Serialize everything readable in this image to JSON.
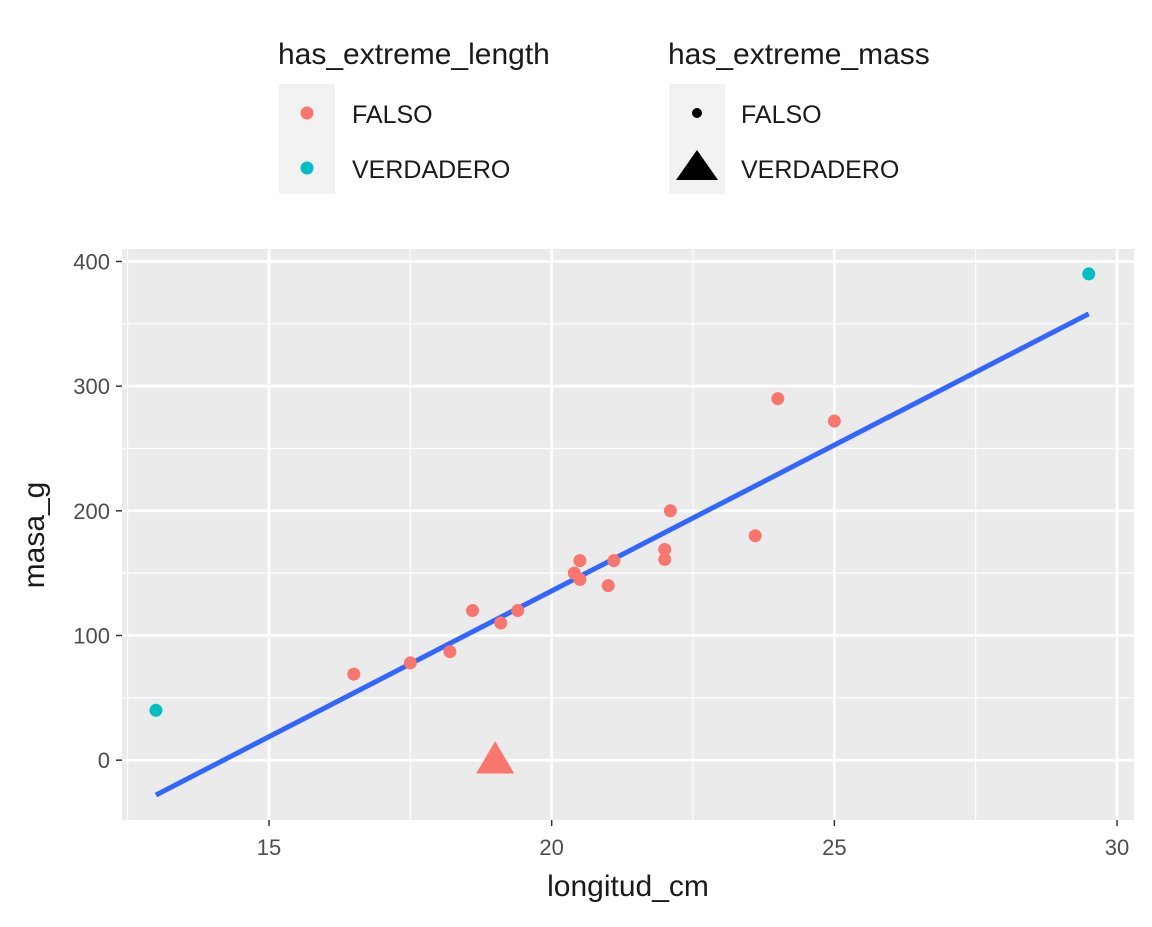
{
  "legend": {
    "color": {
      "title": "has_extreme_length",
      "entries": [
        {
          "label": "FALSO",
          "color": "#F8766D"
        },
        {
          "label": "VERDADERO",
          "color": "#00BFC4"
        }
      ]
    },
    "shape": {
      "title": "has_extreme_mass",
      "entries": [
        {
          "label": "FALSO",
          "shape": "circle"
        },
        {
          "label": "VERDADERO",
          "shape": "triangle"
        }
      ]
    }
  },
  "colors": {
    "panel_bg": "#EBEBEB",
    "grid": "#FFFFFF",
    "fit_line": "#3366FF",
    "false_color": "#F8766D",
    "true_color": "#00BFC4"
  },
  "chart_data": {
    "type": "scatter",
    "xlabel": "longitud_cm",
    "ylabel": "masa_g",
    "xlim": [
      12.4,
      30.3
    ],
    "ylim": [
      -48,
      410
    ],
    "x_ticks": [
      15,
      20,
      25,
      30
    ],
    "y_ticks": [
      0,
      100,
      200,
      300,
      400
    ],
    "grid": true,
    "legend_position": "top",
    "points": [
      {
        "x": 13.0,
        "y": 40,
        "extreme_length": true,
        "extreme_mass": false
      },
      {
        "x": 16.5,
        "y": 69,
        "extreme_length": false,
        "extreme_mass": false
      },
      {
        "x": 17.5,
        "y": 78,
        "extreme_length": false,
        "extreme_mass": false
      },
      {
        "x": 18.2,
        "y": 87,
        "extreme_length": false,
        "extreme_mass": false
      },
      {
        "x": 18.6,
        "y": 120,
        "extreme_length": false,
        "extreme_mass": false
      },
      {
        "x": 19.0,
        "y": 0,
        "extreme_length": false,
        "extreme_mass": true
      },
      {
        "x": 19.1,
        "y": 110,
        "extreme_length": false,
        "extreme_mass": false
      },
      {
        "x": 19.4,
        "y": 120,
        "extreme_length": false,
        "extreme_mass": false
      },
      {
        "x": 20.4,
        "y": 150,
        "extreme_length": false,
        "extreme_mass": false
      },
      {
        "x": 20.5,
        "y": 145,
        "extreme_length": false,
        "extreme_mass": false
      },
      {
        "x": 20.5,
        "y": 160,
        "extreme_length": false,
        "extreme_mass": false
      },
      {
        "x": 21.0,
        "y": 140,
        "extreme_length": false,
        "extreme_mass": false
      },
      {
        "x": 21.1,
        "y": 160,
        "extreme_length": false,
        "extreme_mass": false
      },
      {
        "x": 22.0,
        "y": 161,
        "extreme_length": false,
        "extreme_mass": false
      },
      {
        "x": 22.0,
        "y": 169,
        "extreme_length": false,
        "extreme_mass": false
      },
      {
        "x": 22.1,
        "y": 200,
        "extreme_length": false,
        "extreme_mass": false
      },
      {
        "x": 23.6,
        "y": 180,
        "extreme_length": false,
        "extreme_mass": false
      },
      {
        "x": 24.0,
        "y": 290,
        "extreme_length": false,
        "extreme_mass": false
      },
      {
        "x": 25.0,
        "y": 272,
        "extreme_length": false,
        "extreme_mass": false
      },
      {
        "x": 29.5,
        "y": 390,
        "extreme_length": true,
        "extreme_mass": false
      }
    ],
    "fit_line": {
      "x": [
        13.0,
        29.5
      ],
      "y": [
        -28,
        358
      ]
    }
  }
}
